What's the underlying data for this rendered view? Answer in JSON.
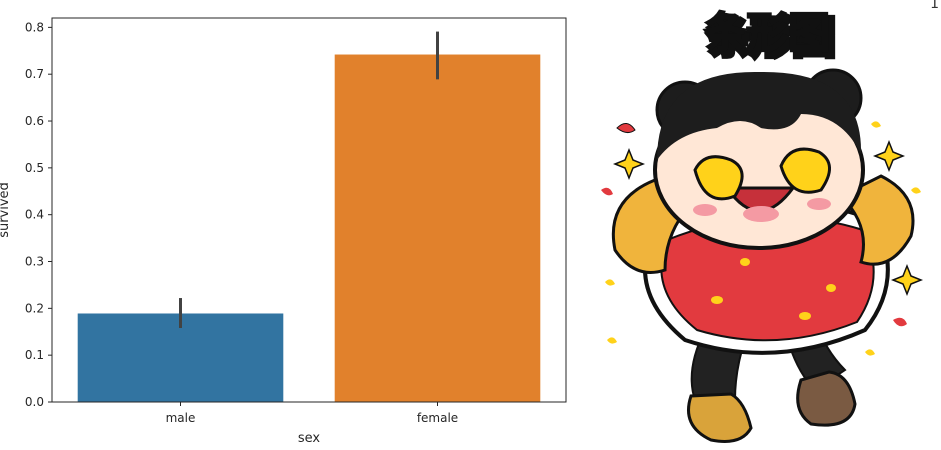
{
  "page_number": "1",
  "sticker": {
    "title": "条形图",
    "icon": "cartoon-girl-sticker",
    "outline_color": "#111111",
    "dress_color": "#e23a3f",
    "sleeve_color": "#f0b43c",
    "accent_color": "#ffd21a"
  },
  "chart_data": {
    "type": "bar",
    "categories": [
      "male",
      "female"
    ],
    "values": [
      0.189,
      0.742
    ],
    "error_bars": [
      [
        0.158,
        0.222
      ],
      [
        0.689,
        0.791
      ]
    ],
    "colors": [
      "#3274a1",
      "#e1812c"
    ],
    "errorbar_color": "#424242",
    "xlabel": "sex",
    "ylabel": "survived",
    "ylim": [
      0,
      0.82
    ],
    "yticks": [
      "0.0",
      "0.1",
      "0.2",
      "0.3",
      "0.4",
      "0.5",
      "0.6",
      "0.7",
      "0.8"
    ],
    "ytick_values": [
      0,
      0.1,
      0.2,
      0.3,
      0.4,
      0.5,
      0.6,
      0.7,
      0.8
    ],
    "grid": false,
    "legend": "none"
  }
}
